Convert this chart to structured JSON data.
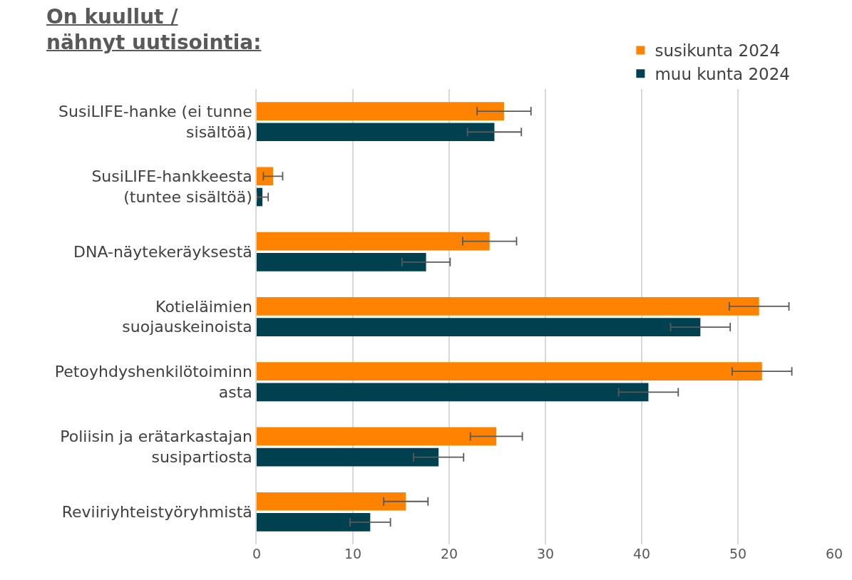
{
  "chart_data": {
    "type": "bar",
    "orientation": "horizontal",
    "title": "On kuullut / nähnyt uutisointia:",
    "categories": [
      "SusiLIFE-hanke (ei tunne sisältöä)",
      "SusiLIFE-hankkeesta (tuntee sisältöä)",
      "DNA-näytekeräyksestä",
      "Kotieläimien suojauskeinoista",
      "Petoyhdyshenkilötoiminnasta",
      "Poliisin ja erätarkastajan susipartiosta",
      "Reviiriyhteistyöryhmistä"
    ],
    "series": [
      {
        "name": "susikunta 2024",
        "color": "#ff8300",
        "values": [
          25.7,
          1.7,
          24.2,
          52.2,
          52.5,
          24.9,
          15.5
        ],
        "errors": [
          2.8,
          1.0,
          2.8,
          3.1,
          3.1,
          2.7,
          2.3
        ]
      },
      {
        "name": "muu kunta 2024",
        "color": "#00404f",
        "values": [
          24.7,
          0.6,
          17.6,
          46.1,
          40.7,
          18.9,
          11.8
        ],
        "errors": [
          2.8,
          0.6,
          2.5,
          3.1,
          3.1,
          2.6,
          2.1
        ]
      }
    ],
    "xlim": [
      0,
      60
    ],
    "xticks": [
      0,
      10,
      20,
      30,
      40,
      50,
      60
    ],
    "grid": "x",
    "legend": "top right"
  }
}
